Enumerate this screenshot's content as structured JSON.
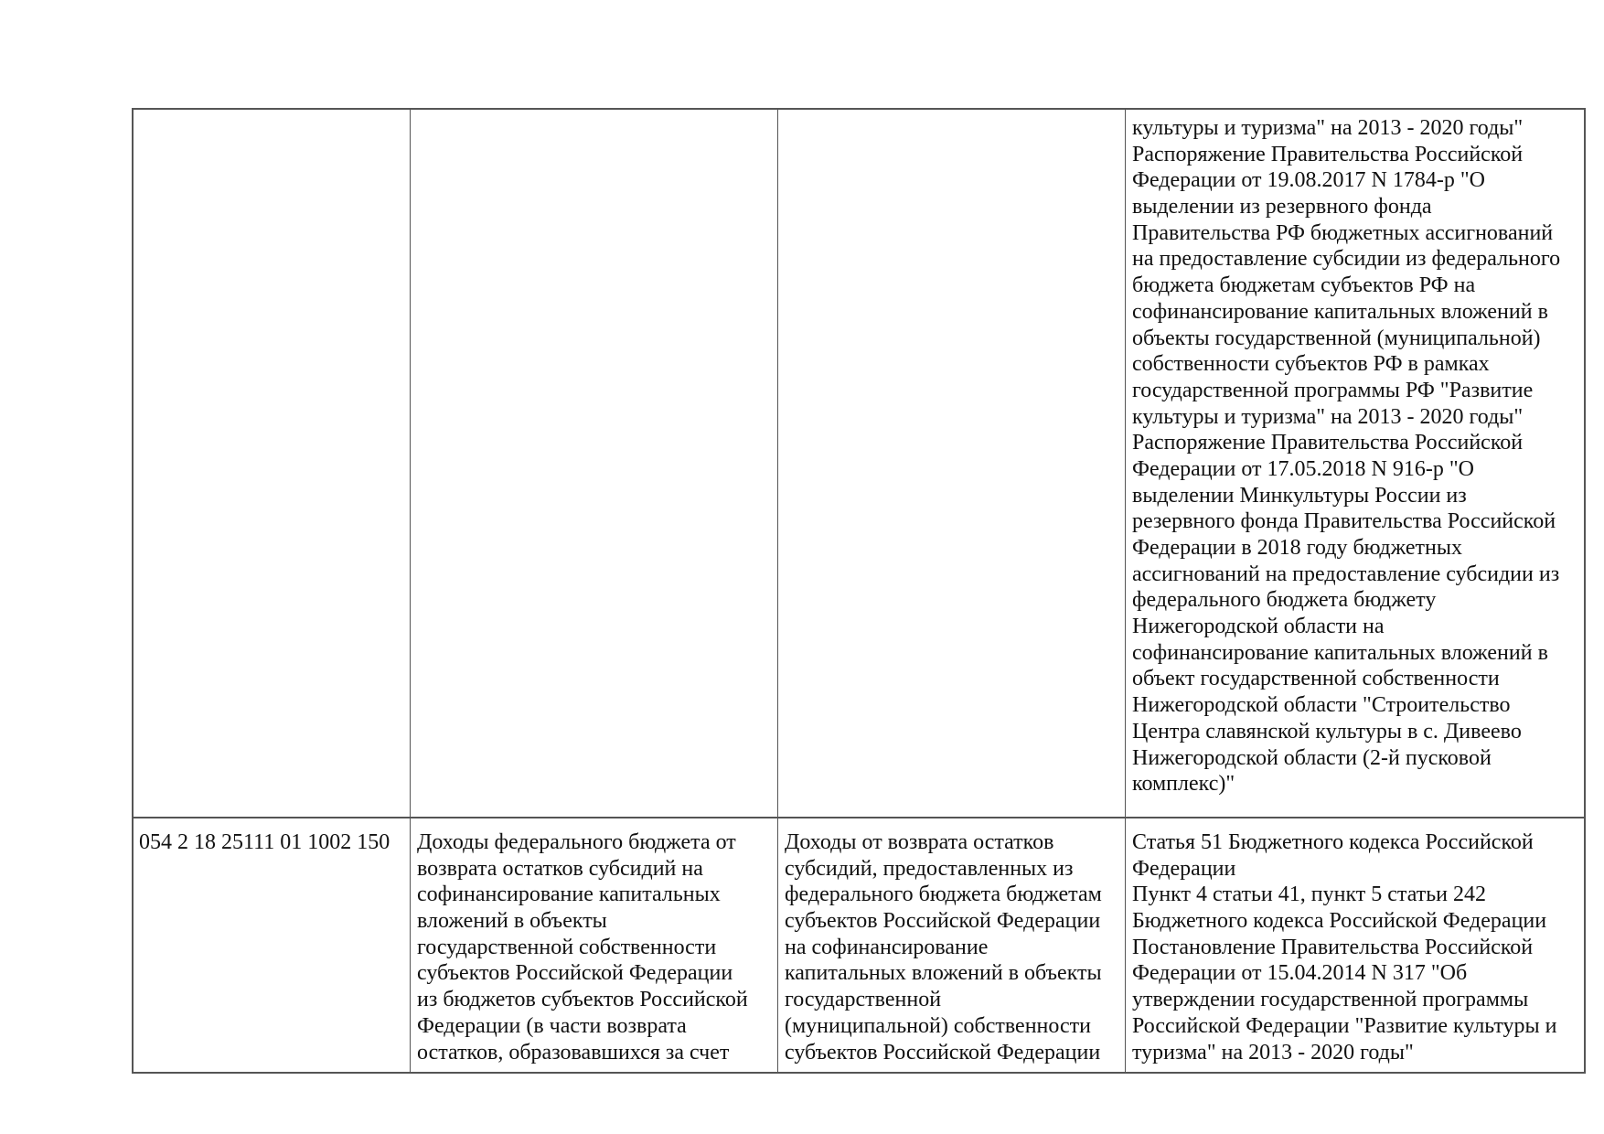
{
  "table": {
    "rows": [
      {
        "code": "",
        "name": [],
        "description": [],
        "basis": [
          "культуры и туризма\" на 2013 - 2020 годы\"",
          "Распоряжение Правительства Российской",
          "Федерации от 19.08.2017 N 1784-р \"О",
          "выделении из резервного фонда",
          "Правительства РФ бюджетных ассигнований",
          "на предоставление субсидии из федерального",
          "бюджета бюджетам субъектов РФ на",
          "софинансирование капитальных вложений в",
          "объекты государственной (муниципальной)",
          "собственности субъектов РФ в рамках",
          "государственной программы РФ \"Развитие",
          "культуры и туризма\" на 2013 - 2020 годы\"",
          "Распоряжение Правительства Российской",
          "Федерации от 17.05.2018 N 916-р \"О",
          "выделении Минкультуры России из",
          "резервного фонда Правительства Российской",
          "Федерации в 2018 году бюджетных",
          "ассигнований на предоставление субсидии из",
          "федерального бюджета бюджету",
          "Нижегородской области на",
          "софинансирование капитальных вложений в",
          "объект государственной собственности",
          "Нижегородской области \"Строительство",
          "Центра славянской культуры в с. Дивеево",
          "Нижегородской области (2-й пусковой",
          "комплекс)\""
        ]
      },
      {
        "code": "054 2 18 25111 01 1002 150",
        "name": [
          "Доходы федерального бюджета от",
          "возврата остатков субсидий на",
          "софинансирование капитальных",
          "вложений в объекты",
          "государственной собственности",
          "субъектов Российской Федерации",
          "из бюджетов субъектов Российской",
          "Федерации (в части возврата",
          "остатков, образовавшихся за счет"
        ],
        "description": [
          "Доходы от возврата остатков",
          "субсидий, предоставленных из",
          "федерального бюджета бюджетам",
          "субъектов Российской Федерации",
          "на софинансирование",
          "капитальных вложений в объекты",
          "государственной",
          "(муниципальной) собственности",
          "субъектов Российской Федерации"
        ],
        "basis": [
          "Статья 51 Бюджетного кодекса Российской",
          "Федерации",
          "Пункт 4 статьи 41, пункт 5 статьи 242",
          "Бюджетного кодекса Российской Федерации",
          "Постановление Правительства Российской",
          "Федерации от 15.04.2014 N 317 \"Об",
          "утверждении государственной программы",
          "Российской Федерации \"Развитие культуры и",
          "туризма\" на 2013 - 2020 годы\""
        ]
      }
    ]
  }
}
